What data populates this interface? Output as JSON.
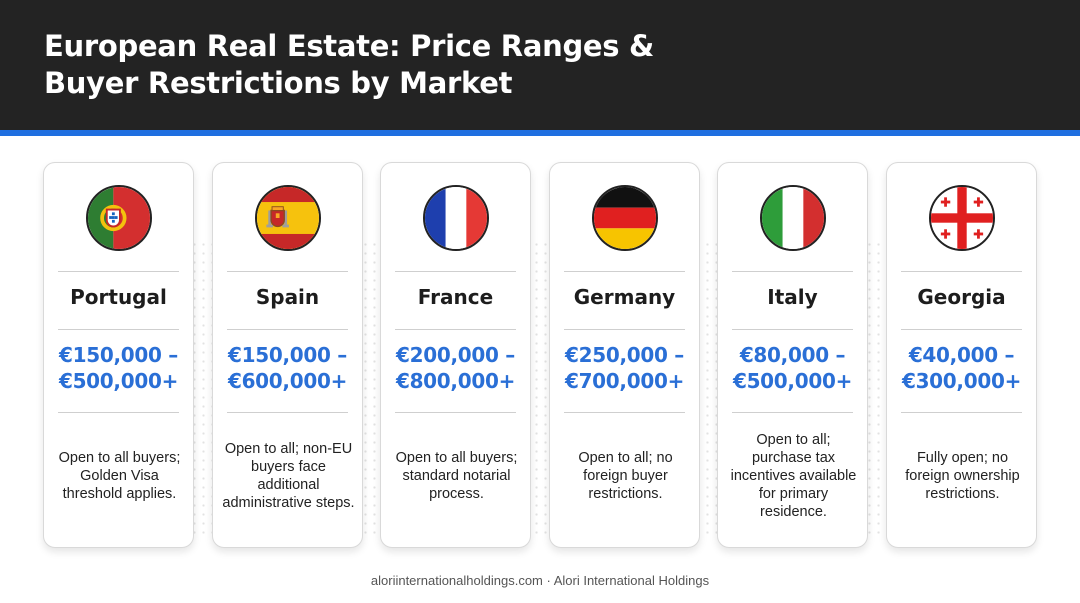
{
  "header": {
    "title_line1": "European Real Estate: Price Ranges &",
    "title_line2": "Buyer Restrictions by Market"
  },
  "accent_color": "#1f6fe0",
  "price_color": "#2a6fd6",
  "markets": [
    {
      "country": "Portugal",
      "flag_icon": "portugal-flag-icon",
      "price_line1": "€150,000 –",
      "price_line2": "€500,000+",
      "description": "Open to all buyers; Golden Visa threshold applies."
    },
    {
      "country": "Spain",
      "flag_icon": "spain-flag-icon",
      "price_line1": "€150,000 –",
      "price_line2": "€600,000+",
      "description": "Open to all; non-EU buyers face additional administrative steps."
    },
    {
      "country": "France",
      "flag_icon": "france-flag-icon",
      "price_line1": "€200,000 –",
      "price_line2": "€800,000+",
      "description": "Open to all buyers; standard notarial process."
    },
    {
      "country": "Germany",
      "flag_icon": "germany-flag-icon",
      "price_line1": "€250,000 –",
      "price_line2": "€700,000+",
      "description": "Open to all; no foreign buyer restrictions."
    },
    {
      "country": "Italy",
      "flag_icon": "italy-flag-icon",
      "price_line1": "€80,000 –",
      "price_line2": "€500,000+",
      "description": "Open to all; purchase tax incentives available for primary residence."
    },
    {
      "country": "Georgia",
      "flag_icon": "georgia-flag-icon",
      "price_line1": "€40,000 –",
      "price_line2": "€300,000+",
      "description": "Fully open; no foreign ownership restrictions."
    }
  ],
  "footer": {
    "text": "aloriinternationalholdings.com · Alori International Holdings"
  }
}
